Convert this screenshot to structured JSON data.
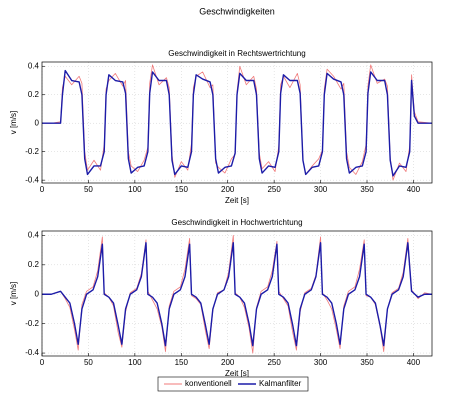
{
  "title": "Geschwindigkeiten",
  "chart_data": [
    {
      "type": "line",
      "title": "Geschwindigkeit in Rechtswertrichtung",
      "xlabel": "Zeit [s]",
      "ylabel": "v [m/s]",
      "xlim": [
        0,
        420
      ],
      "xticks": [
        0,
        50,
        100,
        150,
        200,
        250,
        300,
        350,
        400
      ],
      "ylim": [
        -0.42,
        0.43
      ],
      "yticks": [
        0.4,
        0.2,
        0,
        -0.2,
        -0.4
      ],
      "grid": true,
      "x": [
        0,
        10,
        20,
        22,
        25,
        32,
        40,
        43,
        46,
        49,
        56,
        63,
        67,
        69,
        72,
        79,
        87,
        90,
        93,
        96,
        103,
        110,
        114,
        116,
        119,
        126,
        134,
        137,
        140,
        143,
        150,
        157,
        161,
        163,
        166,
        173,
        181,
        184,
        187,
        190,
        197,
        204,
        208,
        210,
        213,
        220,
        228,
        231,
        234,
        237,
        244,
        251,
        255,
        257,
        260,
        267,
        275,
        278,
        281,
        284,
        291,
        298,
        302,
        304,
        307,
        314,
        322,
        325,
        328,
        331,
        338,
        345,
        349,
        351,
        354,
        361,
        369,
        372,
        375,
        378,
        385,
        392,
        396,
        398,
        401,
        405,
        420
      ],
      "series": [
        {
          "name": "konventionell",
          "color": "#f07a7a",
          "values": [
            0,
            0,
            0.01,
            0.25,
            0.33,
            0.27,
            0.33,
            0.28,
            -0.2,
            -0.33,
            -0.26,
            -0.33,
            -0.15,
            0.24,
            0.3,
            0.35,
            0.26,
            0.3,
            -0.2,
            -0.3,
            -0.34,
            -0.26,
            -0.17,
            0.28,
            0.41,
            0.27,
            0.32,
            0.25,
            -0.22,
            -0.38,
            -0.27,
            -0.33,
            -0.14,
            0.25,
            0.33,
            0.36,
            0.25,
            0.27,
            -0.28,
            -0.31,
            -0.35,
            -0.25,
            -0.22,
            0.22,
            0.4,
            0.27,
            0.33,
            0.24,
            -0.21,
            -0.32,
            -0.27,
            -0.34,
            -0.16,
            0.27,
            0.33,
            0.25,
            0.35,
            0.27,
            -0.26,
            -0.36,
            -0.3,
            -0.25,
            -0.19,
            0.24,
            0.38,
            0.33,
            0.24,
            0.28,
            -0.2,
            -0.31,
            -0.36,
            -0.27,
            -0.15,
            0.26,
            0.41,
            0.28,
            0.31,
            0.26,
            -0.24,
            -0.4,
            -0.28,
            -0.34,
            -0.16,
            0.34,
            0.08,
            0.01,
            0
          ]
        },
        {
          "name": "Kalmanfilter",
          "color": "#1c1ca8",
          "values": [
            0,
            0,
            0,
            0.2,
            0.37,
            0.3,
            0.29,
            0.2,
            -0.25,
            -0.36,
            -0.3,
            -0.3,
            -0.2,
            0.2,
            0.34,
            0.3,
            0.29,
            0.21,
            -0.25,
            -0.35,
            -0.31,
            -0.3,
            -0.2,
            0.21,
            0.36,
            0.3,
            0.3,
            0.2,
            -0.26,
            -0.36,
            -0.3,
            -0.31,
            -0.2,
            0.2,
            0.34,
            0.31,
            0.29,
            0.2,
            -0.25,
            -0.35,
            -0.31,
            -0.3,
            -0.21,
            0.2,
            0.35,
            0.3,
            0.3,
            0.2,
            -0.25,
            -0.35,
            -0.3,
            -0.31,
            -0.2,
            0.21,
            0.34,
            0.3,
            0.3,
            0.21,
            -0.26,
            -0.36,
            -0.31,
            -0.3,
            -0.2,
            0.2,
            0.35,
            0.31,
            0.29,
            0.2,
            -0.25,
            -0.35,
            -0.31,
            -0.3,
            -0.2,
            0.21,
            0.36,
            0.3,
            0.3,
            0.2,
            -0.26,
            -0.37,
            -0.3,
            -0.31,
            -0.2,
            0.3,
            0.05,
            0,
            0
          ]
        }
      ]
    },
    {
      "type": "line",
      "title": "Geschwindigkeit in Hochwertrichtung",
      "xlabel": "Zeit [s]",
      "ylabel": "v [m/s]",
      "xlim": [
        0,
        420
      ],
      "xticks": [
        0,
        50,
        100,
        150,
        200,
        250,
        300,
        350,
        400
      ],
      "ylim": [
        -0.42,
        0.43
      ],
      "yticks": [
        0.4,
        0.2,
        0,
        -0.2,
        -0.4
      ],
      "grid": true,
      "legend": "bottom",
      "x": [
        0,
        10,
        20,
        25,
        30,
        35,
        39,
        43,
        48,
        55,
        60,
        65,
        67,
        72,
        77,
        82,
        86,
        90,
        95,
        102,
        107,
        112,
        114,
        119,
        124,
        129,
        133,
        137,
        142,
        149,
        154,
        159,
        161,
        166,
        171,
        176,
        180,
        184,
        189,
        196,
        201,
        206,
        208,
        213,
        218,
        223,
        227,
        231,
        236,
        243,
        248,
        253,
        255,
        260,
        265,
        270,
        274,
        278,
        283,
        290,
        295,
        300,
        302,
        307,
        312,
        317,
        321,
        325,
        330,
        337,
        342,
        347,
        349,
        354,
        359,
        364,
        368,
        372,
        377,
        384,
        389,
        394,
        398,
        405,
        412,
        420
      ],
      "series": [
        {
          "name": "konventionell",
          "color": "#f07a7a",
          "values": [
            0,
            0,
            0.02,
            -0.03,
            -0.09,
            -0.24,
            -0.38,
            -0.07,
            0.02,
            0.05,
            0.16,
            0.39,
            0.01,
            -0.02,
            -0.08,
            -0.26,
            -0.36,
            -0.12,
            0.01,
            0.04,
            0.14,
            0.37,
            0.02,
            -0.04,
            -0.1,
            -0.22,
            -0.39,
            -0.08,
            0.02,
            0.05,
            0.17,
            0.38,
            -0.01,
            -0.03,
            -0.07,
            -0.25,
            -0.37,
            -0.11,
            0.01,
            0.03,
            0.15,
            0.4,
            0.01,
            -0.02,
            -0.09,
            -0.23,
            -0.4,
            -0.09,
            0.02,
            0.05,
            0.16,
            0.36,
            0.02,
            -0.03,
            -0.08,
            -0.26,
            -0.38,
            -0.12,
            0.01,
            0.04,
            0.13,
            0.39,
            0.01,
            -0.04,
            -0.1,
            -0.24,
            -0.37,
            -0.08,
            0.02,
            0.05,
            0.17,
            0.37,
            -0.01,
            -0.02,
            -0.07,
            -0.22,
            -0.39,
            -0.1,
            0.01,
            0.04,
            0.15,
            0.38,
            0.03,
            -0.03,
            0.01,
            0
          ]
        },
        {
          "name": "Kalmanfilter",
          "color": "#1c1ca8",
          "values": [
            0,
            0,
            0.02,
            -0.02,
            -0.06,
            -0.2,
            -0.34,
            -0.1,
            0,
            0.03,
            0.12,
            0.34,
            0,
            -0.02,
            -0.06,
            -0.21,
            -0.34,
            -0.1,
            0,
            0.03,
            0.12,
            0.35,
            0,
            -0.02,
            -0.06,
            -0.2,
            -0.35,
            -0.1,
            0,
            0.03,
            0.12,
            0.34,
            0,
            -0.02,
            -0.06,
            -0.21,
            -0.34,
            -0.1,
            0,
            0.03,
            0.12,
            0.35,
            0,
            -0.02,
            -0.06,
            -0.2,
            -0.35,
            -0.1,
            0,
            0.03,
            0.12,
            0.34,
            0,
            -0.02,
            -0.06,
            -0.21,
            -0.35,
            -0.1,
            0,
            0.03,
            0.12,
            0.35,
            0,
            -0.02,
            -0.06,
            -0.2,
            -0.34,
            -0.1,
            0,
            0.03,
            0.12,
            0.34,
            0,
            -0.02,
            -0.06,
            -0.21,
            -0.35,
            -0.1,
            0,
            0.03,
            0.12,
            0.35,
            0.02,
            -0.02,
            0,
            0
          ]
        }
      ]
    }
  ]
}
